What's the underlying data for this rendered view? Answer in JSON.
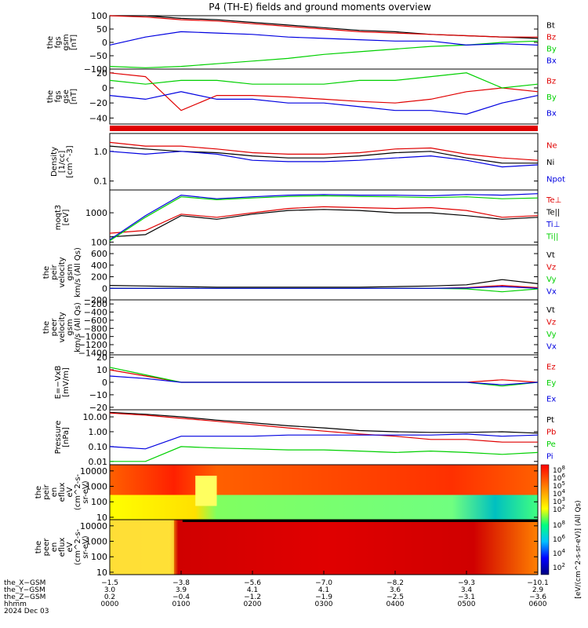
{
  "title": "P4 (TH-E) fields and ground moments overview",
  "colors": {
    "black": "#000000",
    "red": "#e00000",
    "green": "#00d000",
    "blue": "#0000e0"
  },
  "panels": [
    {
      "id": "fgs_gsm",
      "ylabel": [
        "the",
        "fgs",
        "gsm",
        "[nT]"
      ],
      "yticks": [
        {
          "v": 100,
          "t": "100"
        },
        {
          "v": 50,
          "t": "50"
        },
        {
          "v": 0,
          "t": "0"
        },
        {
          "v": -50,
          "t": "−50"
        },
        {
          "v": -100,
          "t": "−100"
        }
      ],
      "ylim": [
        -100,
        100
      ],
      "log": false,
      "legend": [
        {
          "t": "Bt",
          "c": "black"
        },
        {
          "t": "Bz",
          "c": "red"
        },
        {
          "t": "By",
          "c": "green"
        },
        {
          "t": "Bx",
          "c": "blue"
        }
      ]
    },
    {
      "id": "fgs_gse",
      "ylabel": [
        "the",
        "fgs",
        "gse",
        "[nT]"
      ],
      "yticks": [
        {
          "v": 20,
          "t": "20"
        },
        {
          "v": 0,
          "t": "0"
        },
        {
          "v": -20,
          "t": "−20"
        },
        {
          "v": -40,
          "t": "−40"
        }
      ],
      "ylim": [
        -48,
        25
      ],
      "log": false,
      "legend": [
        {
          "t": "Bz",
          "c": "red"
        },
        {
          "t": "By",
          "c": "green"
        },
        {
          "t": "Bx",
          "c": "blue"
        }
      ]
    },
    {
      "id": "density",
      "ylabel": [
        "Density",
        "[1/cc]",
        "[cm^-3]"
      ],
      "yticks": [
        {
          "v": 1.0,
          "t": "1.0"
        },
        {
          "v": 0.1,
          "t": "0.1"
        }
      ],
      "ylim": [
        0.05,
        4
      ],
      "log": true,
      "legend": [
        {
          "t": "Ne",
          "c": "red"
        },
        {
          "t": "Ni",
          "c": "black"
        },
        {
          "t": "Npot",
          "c": "blue"
        }
      ]
    },
    {
      "id": "temperature",
      "ylabel": [
        "moqt3",
        "[eV]"
      ],
      "yticks": [
        {
          "v": 1000,
          "t": "1000"
        },
        {
          "v": 100,
          "t": "100"
        }
      ],
      "ylim": [
        80,
        6000
      ],
      "log": true,
      "legend": [
        {
          "t": "Te⊥",
          "c": "red"
        },
        {
          "t": "Te||",
          "c": "black"
        },
        {
          "t": "Ti⊥",
          "c": "blue"
        },
        {
          "t": "Ti||",
          "c": "green"
        }
      ]
    },
    {
      "id": "peir_velocity",
      "ylabel": [
        "the",
        "peir",
        "velocity",
        "gsm",
        "km/s (All Qs)"
      ],
      "yticks": [
        {
          "v": 600,
          "t": "600"
        },
        {
          "v": 400,
          "t": "400"
        },
        {
          "v": 200,
          "t": "200"
        },
        {
          "v": 0,
          "t": "0"
        },
        {
          "v": -200,
          "t": "−200"
        }
      ],
      "ylim": [
        -200,
        750
      ],
      "log": false,
      "legend": [
        {
          "t": "Vt",
          "c": "black"
        },
        {
          "t": "Vz",
          "c": "red"
        },
        {
          "t": "Vy",
          "c": "green"
        },
        {
          "t": "Vx",
          "c": "blue"
        }
      ]
    },
    {
      "id": "peer_velocity",
      "ylabel": [
        "the",
        "peer",
        "velocity",
        "gsm",
        "km/s (All Qs)"
      ],
      "yticks": [
        {
          "v": -200,
          "t": "−200"
        },
        {
          "v": -400,
          "t": "−400"
        },
        {
          "v": -600,
          "t": "−600"
        },
        {
          "v": -800,
          "t": "−800"
        },
        {
          "v": -1000,
          "t": "−1000"
        },
        {
          "v": -1200,
          "t": "−1200"
        },
        {
          "v": -1400,
          "t": "−1400"
        }
      ],
      "ylim": [
        -1450,
        -100
      ],
      "log": false,
      "legend": [
        {
          "t": "Vt",
          "c": "black"
        },
        {
          "t": "Vz",
          "c": "red"
        },
        {
          "t": "Vy",
          "c": "green"
        },
        {
          "t": "Vx",
          "c": "blue"
        }
      ]
    },
    {
      "id": "efield",
      "ylabel": [
        "E=−VxB",
        "[mV/m]"
      ],
      "yticks": [
        {
          "v": 20,
          "t": "20"
        },
        {
          "v": 10,
          "t": "10"
        },
        {
          "v": 0,
          "t": "0"
        },
        {
          "v": -10,
          "t": "−10"
        },
        {
          "v": -20,
          "t": "−20"
        }
      ],
      "ylim": [
        -22,
        22
      ],
      "log": false,
      "legend": [
        {
          "t": "Ez",
          "c": "red"
        },
        {
          "t": "Ey",
          "c": "green"
        },
        {
          "t": "Ex",
          "c": "blue"
        }
      ]
    },
    {
      "id": "pressure",
      "ylabel": [
        "Pressure",
        "[nPa]"
      ],
      "yticks": [
        {
          "v": 10,
          "t": "10.00"
        },
        {
          "v": 1,
          "t": "1.00"
        },
        {
          "v": 0.1,
          "t": "0.10"
        },
        {
          "v": 0.01,
          "t": "0.01"
        }
      ],
      "ylim": [
        0.006,
        30
      ],
      "log": true,
      "legend": [
        {
          "t": "Pt",
          "c": "black"
        },
        {
          "t": "Pb",
          "c": "red"
        },
        {
          "t": "Pe",
          "c": "green"
        },
        {
          "t": "Pi",
          "c": "blue"
        }
      ]
    },
    {
      "id": "peir_eflux",
      "ylabel": [
        "the",
        "peir",
        "en",
        "eflux",
        "eV",
        "(cm^2-s-",
        "sr-eV)"
      ],
      "yticks": [
        {
          "v": 10000,
          "t": "10000"
        },
        {
          "v": 1000,
          "t": "1000"
        },
        {
          "v": 100,
          "t": "100"
        },
        {
          "v": 10,
          "t": "10"
        }
      ],
      "ylim": [
        7,
        25000
      ],
      "log": true,
      "spectrogram": true,
      "legend": []
    },
    {
      "id": "peer_eflux",
      "ylabel": [
        "the",
        "peer",
        "en",
        "eflux",
        "eV",
        "(cm^2-s-",
        "sr-eV)"
      ],
      "yticks": [
        {
          "v": 10000,
          "t": "10000"
        },
        {
          "v": 1000,
          "t": "1000"
        },
        {
          "v": 100,
          "t": "100"
        },
        {
          "v": 10,
          "t": "10"
        }
      ],
      "ylim": [
        7,
        25000
      ],
      "log": true,
      "spectrogram": true,
      "legend": []
    }
  ],
  "colorbar": {
    "label": "[eV/(cm^2-s-sr-eV)] (All Qs)",
    "top_ticks": [
      "10^8",
      "10^6",
      "10^5",
      "10^4",
      "10^3",
      "10^2"
    ],
    "bottom_ticks": [
      "10^8",
      "10^6",
      "10^4",
      "10^2"
    ]
  },
  "xaxis": {
    "rows": [
      {
        "label": "the_X−GSM",
        "values": [
          "−1.5",
          "−3.8",
          "−5.6",
          "−7.0",
          "−8.2",
          "−9.3",
          "−10.1"
        ]
      },
      {
        "label": "the_Y−GSM",
        "values": [
          "3.0",
          "3.9",
          "4.1",
          "4.1",
          "3.6",
          "3.4",
          "2.9"
        ]
      },
      {
        "label": "the_Z−GSM",
        "values": [
          "0.2",
          "−0.4",
          "−1.2",
          "−1.9",
          "−2.5",
          "−3.1",
          "−3.6"
        ]
      },
      {
        "label": "hhmm",
        "values": [
          "0000",
          "0100",
          "0200",
          "0300",
          "0400",
          "0500",
          "0600"
        ]
      }
    ],
    "date": "2024 Dec 03"
  },
  "chart_data": {
    "type": "line",
    "title": "P4 (TH-E) fields and ground moments overview",
    "x_unit": "hhmm",
    "x_range": [
      "0000",
      "0600"
    ],
    "x_ticks": [
      "0000",
      "0100",
      "0200",
      "0300",
      "0400",
      "0500",
      "0600"
    ],
    "x": [
      0,
      0.5,
      1,
      1.5,
      2,
      2.5,
      3,
      3.5,
      4,
      4.5,
      5,
      5.5,
      6
    ],
    "panels": [
      {
        "ylabel": "the fgs gsm [nT]",
        "ylim": [
          -100,
          100
        ],
        "series": [
          {
            "name": "Bt",
            "color": "black",
            "values": [
              110,
              100,
              90,
              85,
              75,
              65,
              55,
              45,
              40,
              30,
              25,
              20,
              15
            ]
          },
          {
            "name": "Bz",
            "color": "red",
            "values": [
              105,
              95,
              85,
              80,
              70,
              60,
              50,
              40,
              35,
              30,
              25,
              20,
              20
            ]
          },
          {
            "name": "By",
            "color": "green",
            "values": [
              -90,
              -95,
              -90,
              -80,
              -70,
              -60,
              -45,
              -35,
              -25,
              -15,
              -10,
              0,
              5
            ]
          },
          {
            "name": "Bx",
            "color": "blue",
            "values": [
              -10,
              20,
              40,
              35,
              30,
              20,
              15,
              10,
              5,
              5,
              -10,
              -5,
              -10
            ]
          }
        ]
      },
      {
        "ylabel": "the fgs gse [nT]",
        "ylim": [
          -48,
          25
        ],
        "series": [
          {
            "name": "Bz",
            "color": "red",
            "values": [
              20,
              15,
              -30,
              -10,
              -10,
              -12,
              -15,
              -18,
              -20,
              -15,
              -5,
              0,
              -5
            ]
          },
          {
            "name": "By",
            "color": "green",
            "values": [
              10,
              5,
              10,
              10,
              5,
              5,
              5,
              10,
              10,
              15,
              20,
              0,
              5
            ]
          },
          {
            "name": "Bx",
            "color": "blue",
            "values": [
              -10,
              -15,
              -5,
              -15,
              -15,
              -20,
              -20,
              -25,
              -30,
              -30,
              -35,
              -20,
              -10
            ]
          }
        ]
      },
      {
        "ylabel": "Density [1/cc]",
        "ylim": [
          0.05,
          4
        ],
        "log": true,
        "series": [
          {
            "name": "Ne",
            "color": "red",
            "values": [
              2,
              1.5,
              1.5,
              1.2,
              0.9,
              0.8,
              0.8,
              0.9,
              1.2,
              1.3,
              0.8,
              0.6,
              0.5
            ]
          },
          {
            "name": "Ni",
            "color": "black",
            "values": [
              1.5,
              1.2,
              1.0,
              0.9,
              0.7,
              0.6,
              0.6,
              0.7,
              0.9,
              1.0,
              0.6,
              0.4,
              0.4
            ]
          },
          {
            "name": "Npot",
            "color": "blue",
            "values": [
              1,
              0.8,
              1.0,
              0.8,
              0.5,
              0.45,
              0.45,
              0.5,
              0.6,
              0.7,
              0.5,
              0.3,
              0.35
            ]
          }
        ]
      },
      {
        "ylabel": "moqt3 [eV]",
        "ylim": [
          80,
          6000
        ],
        "log": true,
        "series": [
          {
            "name": "Te⊥",
            "color": "red",
            "values": [
              200,
              250,
              900,
              700,
              1000,
              1400,
              1600,
              1500,
              1400,
              1500,
              1200,
              700,
              800
            ]
          },
          {
            "name": "Te||",
            "color": "black",
            "values": [
              150,
              180,
              800,
              600,
              900,
              1200,
              1300,
              1200,
              1000,
              1000,
              800,
              600,
              700
            ]
          },
          {
            "name": "Ti⊥",
            "color": "blue",
            "values": [
              120,
              800,
              4000,
              3000,
              3500,
              4000,
              4200,
              4000,
              4000,
              3800,
              4200,
              4000,
              4500
            ]
          },
          {
            "name": "Ti||",
            "color": "green",
            "values": [
              110,
              700,
              3500,
              2800,
              3200,
              3600,
              3800,
              3600,
              3500,
              3300,
              3500,
              3000,
              3200
            ]
          }
        ]
      },
      {
        "ylabel": "the peir velocity gsm km/s",
        "ylim": [
          -200,
          750
        ],
        "series": [
          {
            "name": "Vt",
            "color": "black",
            "values": [
              50,
              40,
              30,
              20,
              20,
              20,
              20,
              20,
              30,
              40,
              60,
              150,
              80
            ]
          },
          {
            "name": "Vz",
            "color": "red",
            "values": [
              0,
              0,
              0,
              0,
              0,
              0,
              0,
              0,
              0,
              0,
              10,
              50,
              10
            ]
          },
          {
            "name": "Vy",
            "color": "green",
            "values": [
              0,
              0,
              0,
              0,
              0,
              0,
              0,
              0,
              0,
              0,
              -10,
              -60,
              -10
            ]
          },
          {
            "name": "Vx",
            "color": "blue",
            "values": [
              0,
              0,
              0,
              0,
              0,
              0,
              0,
              0,
              0,
              0,
              5,
              30,
              0
            ]
          }
        ]
      },
      {
        "ylabel": "the peer velocity gsm km/s",
        "ylim": [
          -1450,
          -100
        ],
        "series": []
      },
      {
        "ylabel": "E=−VxB [mV/m]",
        "ylim": [
          -22,
          22
        ],
        "series": [
          {
            "name": "Ez",
            "color": "red",
            "values": [
              10,
              5,
              0,
              0,
              0,
              0,
              0,
              0,
              0,
              0,
              0,
              2,
              0
            ]
          },
          {
            "name": "Ey",
            "color": "green",
            "values": [
              12,
              6,
              0,
              0,
              0,
              0,
              0,
              0,
              0,
              0,
              0,
              -3,
              0
            ]
          },
          {
            "name": "Ex",
            "color": "blue",
            "values": [
              5,
              3,
              0,
              0,
              0,
              0,
              0,
              0,
              0,
              0,
              0,
              -2,
              0
            ]
          }
        ]
      },
      {
        "ylabel": "Pressure [nPa]",
        "ylim": [
          0.006,
          30
        ],
        "log": true,
        "series": [
          {
            "name": "Pt",
            "color": "black",
            "values": [
              20,
              15,
              10,
              6,
              4,
              2.5,
              1.8,
              1.2,
              1,
              0.9,
              0.9,
              1,
              0.8
            ]
          },
          {
            "name": "Pb",
            "color": "red",
            "values": [
              18,
              13,
              8,
              5,
              3,
              1.8,
              1.1,
              0.7,
              0.5,
              0.3,
              0.3,
              0.2,
              0.2
            ]
          },
          {
            "name": "Pe",
            "color": "green",
            "values": [
              0.01,
              0.01,
              0.1,
              0.08,
              0.07,
              0.06,
              0.06,
              0.05,
              0.04,
              0.05,
              0.04,
              0.03,
              0.04
            ]
          },
          {
            "name": "Pi",
            "color": "blue",
            "values": [
              0.1,
              0.07,
              0.5,
              0.5,
              0.5,
              0.6,
              0.6,
              0.6,
              0.6,
              0.6,
              0.7,
              0.5,
              0.6
            ]
          }
        ]
      },
      {
        "ylabel": "the peir en eflux",
        "type": "heatmap",
        "ylim": [
          7,
          25000
        ],
        "log": true
      },
      {
        "ylabel": "the peer en eflux",
        "type": "heatmap",
        "ylim": [
          7,
          25000
        ],
        "log": true
      }
    ]
  }
}
